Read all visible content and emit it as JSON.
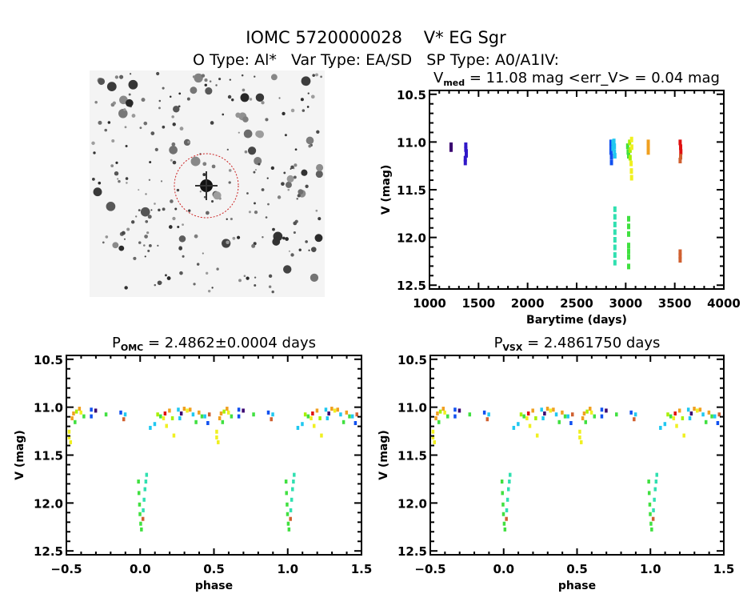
{
  "header": {
    "title": "IOMC 5720000028    V* EG Sgr",
    "subtitle": "O Type: Al*   Var Type: EA/SD   SP Type: A0/A1IV:"
  },
  "palette": {
    "P": "#3a0070",
    "I": "#3018c8",
    "B": "#1050f0",
    "C": "#20c8f0",
    "T": "#30e0b0",
    "G": "#40e040",
    "L": "#a8f000",
    "Y": "#f0f020",
    "O": "#f0a020",
    "R": "#e01010",
    "Br": "#d06030"
  },
  "finder_image": {
    "circle_color": "#cc2222"
  },
  "chart_data": [
    {
      "type": "scatter",
      "title_main": "V",
      "title_sub": "med",
      "title_rest": " = 11.08 mag <err_V> = 0.04 mag",
      "xlabel": "Barytime (days)",
      "ylabel": "V (mag)",
      "xlim": [
        1000,
        4000
      ],
      "ylim": [
        10.46,
        12.54
      ],
      "y_inverted": true,
      "xticks": [
        1000,
        1500,
        2000,
        2500,
        3000,
        3500,
        4000
      ],
      "xtick_labels": [
        "1000",
        "1500",
        "2000",
        "2500",
        "3000",
        "3500",
        "4000"
      ],
      "yticks": [
        10.5,
        11.0,
        11.5,
        12.0,
        12.5
      ],
      "ytick_labels": [
        "10.5",
        "11.0",
        "11.5",
        "12.0",
        "12.5"
      ],
      "points": [
        [
          1220,
          11.03,
          "P"
        ],
        [
          1220,
          11.05,
          "P"
        ],
        [
          1220,
          11.07,
          "P"
        ],
        [
          1370,
          11.03,
          "I"
        ],
        [
          1370,
          11.07,
          "I"
        ],
        [
          1375,
          11.1,
          "I"
        ],
        [
          1375,
          11.13,
          "I"
        ],
        [
          1365,
          11.17,
          "I"
        ],
        [
          1365,
          11.21,
          "I"
        ],
        [
          2850,
          11.0,
          "B"
        ],
        [
          2850,
          11.05,
          "B"
        ],
        [
          2850,
          11.1,
          "B"
        ],
        [
          2855,
          11.15,
          "B"
        ],
        [
          2855,
          11.21,
          "B"
        ],
        [
          2870,
          11.0,
          "C"
        ],
        [
          2870,
          11.06,
          "C"
        ],
        [
          2880,
          10.99,
          "C"
        ],
        [
          2885,
          11.04,
          "C"
        ],
        [
          2885,
          11.1,
          "C"
        ],
        [
          2890,
          11.14,
          "C"
        ],
        [
          2890,
          11.7,
          "T"
        ],
        [
          2890,
          11.78,
          "T"
        ],
        [
          2890,
          11.86,
          "T"
        ],
        [
          2890,
          11.94,
          "T"
        ],
        [
          2890,
          12.02,
          "T"
        ],
        [
          2890,
          12.1,
          "T"
        ],
        [
          2890,
          12.18,
          "T"
        ],
        [
          2890,
          12.26,
          "T"
        ],
        [
          3020,
          11.04,
          "G"
        ],
        [
          3025,
          11.1,
          "G"
        ],
        [
          3030,
          11.14,
          "G"
        ],
        [
          3040,
          11.0,
          "L"
        ],
        [
          3045,
          11.08,
          "L"
        ],
        [
          3045,
          11.16,
          "L"
        ],
        [
          3055,
          11.22,
          "Y"
        ],
        [
          3058,
          11.3,
          "Y"
        ],
        [
          3060,
          11.37,
          "Y"
        ],
        [
          3060,
          10.97,
          "Y"
        ],
        [
          3062,
          11.05,
          "Y"
        ],
        [
          3030,
          11.8,
          "G"
        ],
        [
          3030,
          11.88,
          "G"
        ],
        [
          3030,
          11.96,
          "G"
        ],
        [
          3030,
          12.08,
          "G"
        ],
        [
          3030,
          12.14,
          "G"
        ],
        [
          3030,
          12.2,
          "G"
        ],
        [
          3030,
          12.3,
          "G"
        ],
        [
          3230,
          11.0,
          "O"
        ],
        [
          3230,
          11.05,
          "O"
        ],
        [
          3230,
          11.1,
          "O"
        ],
        [
          3555,
          11.0,
          "R"
        ],
        [
          3560,
          11.05,
          "R"
        ],
        [
          3562,
          11.1,
          "R"
        ],
        [
          3560,
          11.15,
          "Br"
        ],
        [
          3555,
          11.19,
          "Br"
        ],
        [
          3555,
          12.15,
          "Br"
        ],
        [
          3555,
          12.19,
          "Br"
        ],
        [
          3555,
          12.23,
          "Br"
        ]
      ]
    },
    {
      "type": "scatter",
      "title_main": "P",
      "title_sub": "OMC",
      "title_rest": " = 2.4862±0.0004 days",
      "xlabel": "phase",
      "ylabel": "V (mag)",
      "xlim": [
        -0.5,
        1.5
      ],
      "ylim": [
        10.46,
        12.54
      ],
      "y_inverted": true,
      "xticks": [
        -0.5,
        0.0,
        0.5,
        1.0,
        1.5
      ],
      "xtick_labels": [
        "−0.5",
        "0.0",
        "0.5",
        "1.0",
        "1.5"
      ],
      "yticks": [
        10.5,
        11.0,
        11.5,
        12.0,
        12.5
      ],
      "ytick_labels": [
        "10.5",
        "11.0",
        "11.5",
        "12.0",
        "12.5"
      ],
      "phase_repeated": true,
      "points": [
        [
          -0.48,
          11.26,
          "Y"
        ],
        [
          -0.48,
          11.32,
          "Y"
        ],
        [
          -0.47,
          11.37,
          "Y"
        ],
        [
          -0.46,
          11.12,
          "O"
        ],
        [
          -0.45,
          11.07,
          "O"
        ],
        [
          -0.44,
          11.16,
          "G"
        ],
        [
          -0.43,
          11.05,
          "L"
        ],
        [
          -0.41,
          11.02,
          "O"
        ],
        [
          -0.4,
          11.06,
          "Y"
        ],
        [
          -0.38,
          11.1,
          "G"
        ],
        [
          -0.33,
          11.03,
          "B"
        ],
        [
          -0.33,
          11.1,
          "B"
        ],
        [
          -0.3,
          11.04,
          "P"
        ],
        [
          -0.23,
          11.08,
          "G"
        ],
        [
          -0.13,
          11.06,
          "B"
        ],
        [
          -0.11,
          11.13,
          "Br"
        ],
        [
          -0.1,
          11.08,
          "C"
        ],
        [
          -0.01,
          11.78,
          "G"
        ],
        [
          -0.007,
          11.9,
          "G"
        ],
        [
          -0.003,
          12.02,
          "G"
        ],
        [
          0.0,
          12.12,
          "G"
        ],
        [
          0.005,
          12.22,
          "G"
        ],
        [
          0.01,
          12.28,
          "G"
        ],
        [
          0.02,
          12.17,
          "Br"
        ],
        [
          0.022,
          12.08,
          "T"
        ],
        [
          0.028,
          11.97,
          "T"
        ],
        [
          0.034,
          11.86,
          "T"
        ],
        [
          0.04,
          11.78,
          "T"
        ],
        [
          0.045,
          11.71,
          "T"
        ],
        [
          0.07,
          11.22,
          "C"
        ],
        [
          0.1,
          11.18,
          "C"
        ],
        [
          0.12,
          11.08,
          "L"
        ],
        [
          0.14,
          11.1,
          "G"
        ],
        [
          0.16,
          11.12,
          "Y"
        ],
        [
          0.17,
          11.07,
          "R"
        ],
        [
          0.18,
          11.2,
          "Y"
        ],
        [
          0.2,
          11.04,
          "O"
        ],
        [
          0.22,
          11.12,
          "L"
        ],
        [
          0.23,
          11.3,
          "Y"
        ],
        [
          0.26,
          11.03,
          "C"
        ],
        [
          0.27,
          11.12,
          "C"
        ],
        [
          0.28,
          11.07,
          "P"
        ],
        [
          0.3,
          11.02,
          "O"
        ],
        [
          0.32,
          11.04,
          "Y"
        ],
        [
          0.34,
          11.03,
          "O"
        ],
        [
          0.36,
          11.08,
          "C"
        ],
        [
          0.38,
          11.16,
          "G"
        ],
        [
          0.4,
          11.06,
          "O"
        ],
        [
          0.42,
          11.1,
          "G"
        ],
        [
          0.44,
          11.1,
          "C"
        ],
        [
          0.46,
          11.17,
          "B"
        ],
        [
          0.47,
          11.08,
          "Br"
        ]
      ]
    },
    {
      "type": "scatter",
      "title_main": "P",
      "title_sub": "VSX",
      "title_rest": " = 2.4861750 days",
      "xlabel": "phase",
      "ylabel": "V (mag)",
      "xlim": [
        -0.5,
        1.5
      ],
      "ylim": [
        10.46,
        12.54
      ],
      "y_inverted": true,
      "xticks": [
        -0.5,
        0.0,
        0.5,
        1.0,
        1.5
      ],
      "xtick_labels": [
        "−0.5",
        "0.0",
        "0.5",
        "1.0",
        "1.5"
      ],
      "yticks": [
        10.5,
        11.0,
        11.5,
        12.0,
        12.5
      ],
      "ytick_labels": [
        "10.5",
        "11.0",
        "11.5",
        "12.0",
        "12.5"
      ],
      "phase_repeated": true,
      "points": [
        [
          -0.48,
          11.26,
          "Y"
        ],
        [
          -0.48,
          11.32,
          "Y"
        ],
        [
          -0.47,
          11.37,
          "Y"
        ],
        [
          -0.46,
          11.12,
          "O"
        ],
        [
          -0.45,
          11.07,
          "O"
        ],
        [
          -0.44,
          11.16,
          "G"
        ],
        [
          -0.43,
          11.05,
          "L"
        ],
        [
          -0.41,
          11.02,
          "O"
        ],
        [
          -0.4,
          11.06,
          "Y"
        ],
        [
          -0.38,
          11.1,
          "G"
        ],
        [
          -0.33,
          11.03,
          "B"
        ],
        [
          -0.33,
          11.1,
          "B"
        ],
        [
          -0.3,
          11.04,
          "P"
        ],
        [
          -0.23,
          11.08,
          "G"
        ],
        [
          -0.13,
          11.06,
          "B"
        ],
        [
          -0.11,
          11.13,
          "Br"
        ],
        [
          -0.1,
          11.08,
          "C"
        ],
        [
          -0.01,
          11.78,
          "G"
        ],
        [
          -0.007,
          11.9,
          "G"
        ],
        [
          -0.003,
          12.02,
          "G"
        ],
        [
          0.0,
          12.12,
          "G"
        ],
        [
          0.005,
          12.22,
          "G"
        ],
        [
          0.01,
          12.28,
          "G"
        ],
        [
          0.02,
          12.17,
          "Br"
        ],
        [
          0.022,
          12.08,
          "T"
        ],
        [
          0.028,
          11.97,
          "T"
        ],
        [
          0.034,
          11.86,
          "T"
        ],
        [
          0.04,
          11.78,
          "T"
        ],
        [
          0.045,
          11.71,
          "T"
        ],
        [
          0.07,
          11.22,
          "C"
        ],
        [
          0.1,
          11.18,
          "C"
        ],
        [
          0.12,
          11.08,
          "L"
        ],
        [
          0.14,
          11.1,
          "G"
        ],
        [
          0.16,
          11.12,
          "Y"
        ],
        [
          0.17,
          11.07,
          "R"
        ],
        [
          0.18,
          11.2,
          "Y"
        ],
        [
          0.2,
          11.04,
          "O"
        ],
        [
          0.22,
          11.12,
          "L"
        ],
        [
          0.23,
          11.3,
          "Y"
        ],
        [
          0.26,
          11.03,
          "C"
        ],
        [
          0.27,
          11.12,
          "C"
        ],
        [
          0.28,
          11.07,
          "P"
        ],
        [
          0.3,
          11.02,
          "O"
        ],
        [
          0.32,
          11.04,
          "Y"
        ],
        [
          0.34,
          11.03,
          "O"
        ],
        [
          0.36,
          11.08,
          "C"
        ],
        [
          0.38,
          11.16,
          "G"
        ],
        [
          0.4,
          11.06,
          "O"
        ],
        [
          0.42,
          11.1,
          "G"
        ],
        [
          0.44,
          11.1,
          "C"
        ],
        [
          0.46,
          11.17,
          "B"
        ],
        [
          0.47,
          11.08,
          "Br"
        ]
      ]
    }
  ]
}
